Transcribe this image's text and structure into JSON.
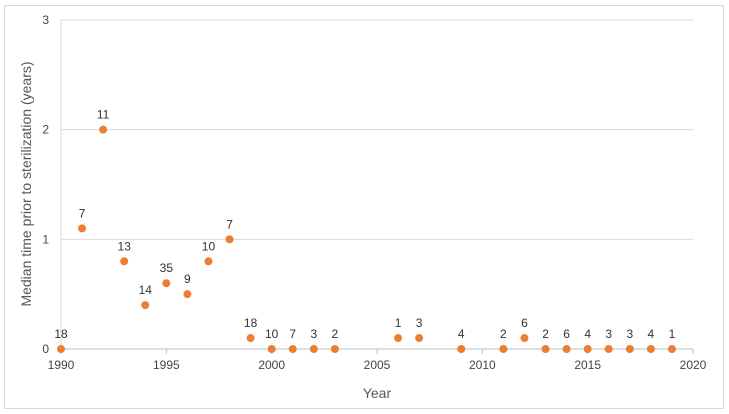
{
  "chart_data": {
    "type": "scatter",
    "title": "",
    "xlabel": "Year",
    "ylabel": "Median time prior to sterilization (years)",
    "xlim": [
      1990,
      2020
    ],
    "ylim": [
      0,
      3
    ],
    "xticks": [
      1990,
      1995,
      2000,
      2005,
      2010,
      2015,
      2020
    ],
    "yticks": [
      0,
      1,
      2,
      3
    ],
    "grid": "horizontal",
    "legend": "none",
    "marker_color": "#ED7D31",
    "series": [
      {
        "points": [
          {
            "x": 1990,
            "y": 0,
            "label": "18"
          },
          {
            "x": 1991,
            "y": 1.1,
            "label": "7"
          },
          {
            "x": 1992,
            "y": 2.0,
            "label": "11"
          },
          {
            "x": 1993,
            "y": 0.8,
            "label": "13"
          },
          {
            "x": 1994,
            "y": 0.4,
            "label": "14"
          },
          {
            "x": 1995,
            "y": 0.6,
            "label": "35"
          },
          {
            "x": 1996,
            "y": 0.5,
            "label": "9"
          },
          {
            "x": 1997,
            "y": 0.8,
            "label": "10"
          },
          {
            "x": 1998,
            "y": 1.0,
            "label": "7"
          },
          {
            "x": 1999,
            "y": 0.1,
            "label": "18"
          },
          {
            "x": 2000,
            "y": 0,
            "label": "10"
          },
          {
            "x": 2001,
            "y": 0,
            "label": "7"
          },
          {
            "x": 2002,
            "y": 0,
            "label": "3"
          },
          {
            "x": 2003,
            "y": 0,
            "label": "2"
          },
          {
            "x": 2006,
            "y": 0.1,
            "label": "1"
          },
          {
            "x": 2007,
            "y": 0.1,
            "label": "3"
          },
          {
            "x": 2009,
            "y": 0,
            "label": "4"
          },
          {
            "x": 2011,
            "y": 0,
            "label": "2"
          },
          {
            "x": 2012,
            "y": 0.1,
            "label": "6"
          },
          {
            "x": 2013,
            "y": 0,
            "label": "2"
          },
          {
            "x": 2014,
            "y": 0,
            "label": "6"
          },
          {
            "x": 2015,
            "y": 0,
            "label": "4"
          },
          {
            "x": 2016,
            "y": 0,
            "label": "3"
          },
          {
            "x": 2017,
            "y": 0,
            "label": "3"
          },
          {
            "x": 2018,
            "y": 0,
            "label": "4"
          },
          {
            "x": 2019,
            "y": 0,
            "label": "1"
          }
        ]
      }
    ]
  }
}
